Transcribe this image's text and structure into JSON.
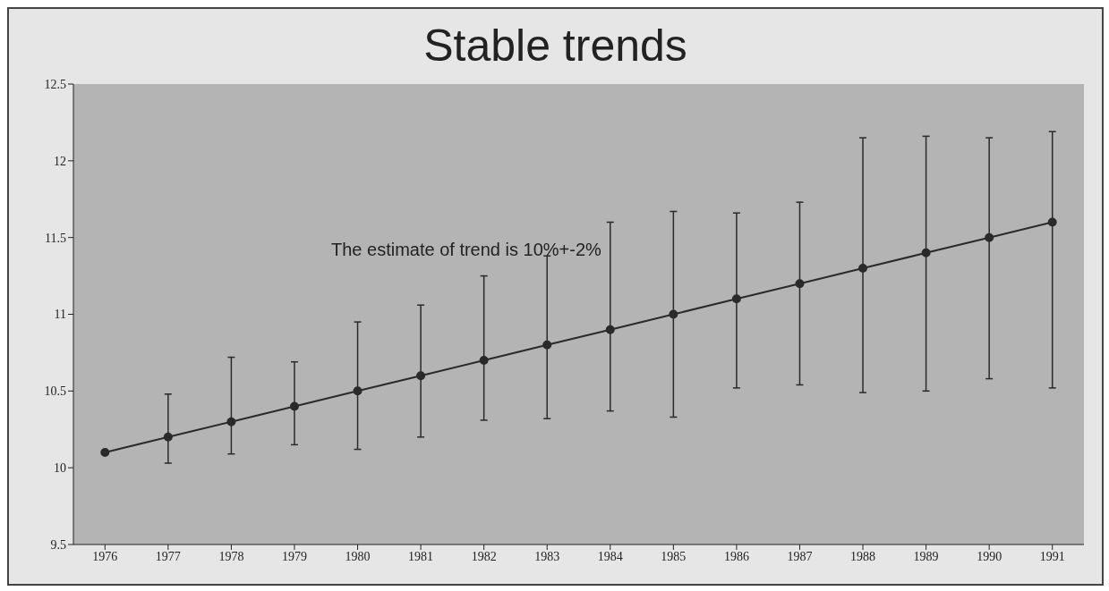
{
  "chart_data": {
    "type": "line",
    "title": "Stable trends",
    "annotations": [
      "The estimate of trend is 10%+-2%"
    ],
    "x": [
      1976,
      1977,
      1978,
      1979,
      1980,
      1981,
      1982,
      1983,
      1984,
      1985,
      1986,
      1987,
      1988,
      1989,
      1990,
      1991
    ],
    "series": [
      {
        "color": "#2a2a2a",
        "values": [
          10.1,
          10.2,
          10.3,
          10.4,
          10.5,
          10.6,
          10.7,
          10.8,
          10.9,
          11.0,
          11.1,
          11.2,
          11.3,
          11.4,
          11.5,
          11.6
        ],
        "errors": [
          null,
          [
            10.03,
            10.48
          ],
          [
            10.09,
            10.72
          ],
          [
            10.15,
            10.69
          ],
          [
            10.12,
            10.95
          ],
          [
            10.2,
            11.06
          ],
          [
            10.31,
            11.25
          ],
          [
            10.32,
            11.38
          ],
          [
            10.37,
            11.6
          ],
          [
            10.33,
            11.67
          ],
          [
            10.52,
            11.66
          ],
          [
            10.54,
            11.73
          ],
          [
            10.49,
            12.15
          ],
          [
            10.5,
            12.16
          ],
          [
            10.58,
            12.15
          ],
          [
            10.52,
            12.19
          ]
        ]
      }
    ],
    "xlim": [
      1975.5,
      1991.5
    ],
    "xticks": [
      1976,
      1977,
      1978,
      1979,
      1980,
      1981,
      1982,
      1983,
      1984,
      1985,
      1986,
      1987,
      1988,
      1989,
      1990,
      1991
    ],
    "ylim": [
      9.5,
      12.5
    ],
    "yticks": [
      9.5,
      10,
      10.5,
      11,
      11.5,
      12,
      12.5
    ],
    "marker": "circle",
    "line_style": "solid",
    "grid": false
  }
}
